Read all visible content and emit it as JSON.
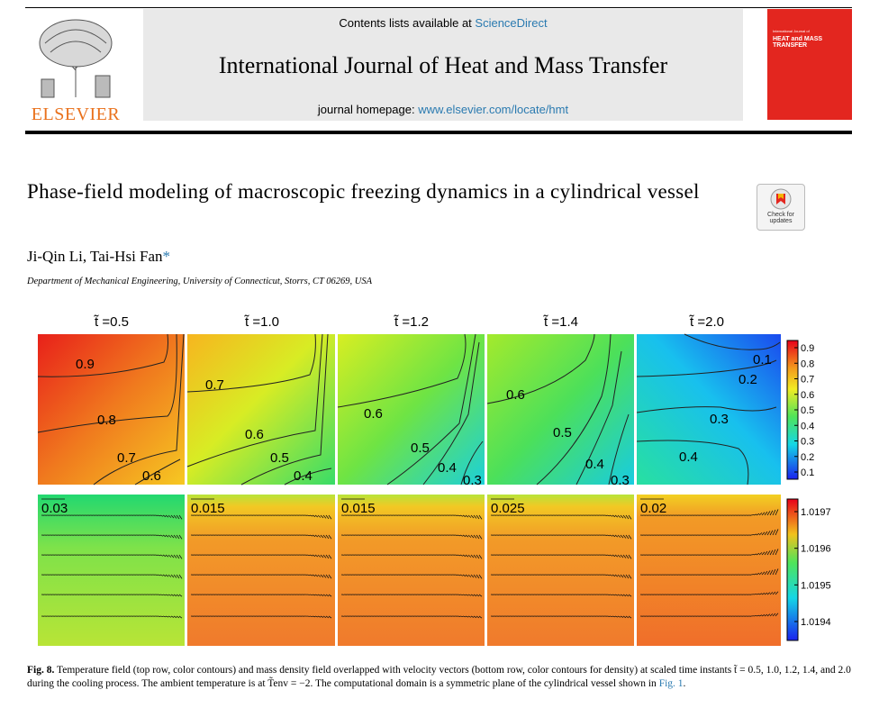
{
  "journal": {
    "contents_prefix": "Contents lists available at ",
    "contents_link": "ScienceDirect",
    "title": "International Journal of Heat and Mass Transfer",
    "homepage_prefix": "journal homepage: ",
    "homepage_link": "www.elsevier.com/locate/hmt",
    "publisher": "ELSEVIER",
    "cover_small": "International Journal of",
    "cover_title": "HEAT and MASS TRANSFER"
  },
  "article": {
    "title": "Phase-field modeling of macroscopic freezing dynamics in a cylindrical vessel",
    "authors": "Ji-Qin Li, Tai-Hsi Fan",
    "author_mark": "*",
    "affiliation": "Department of Mechanical Engineering, University of Connecticut, Storrs, CT 06269, USA",
    "check_updates": "Check for updates"
  },
  "figure": {
    "panel_labels": [
      "t̃ =0.5",
      "t̃ =1.0",
      "t̃ =1.2",
      "t̃ =1.4",
      "t̃ =2.0"
    ],
    "temperature_contour_labels": [
      [
        "0.9",
        "0.8",
        "0.7",
        "0.6"
      ],
      [
        "0.7",
        "0.6",
        "0.5",
        "0.4"
      ],
      [
        "0.6",
        "0.5",
        "0.4",
        "0.3"
      ],
      [
        "0.6",
        "0.5",
        "0.4",
        "0.3"
      ],
      [
        "0.1",
        "0.2",
        "0.3",
        "0.4"
      ]
    ],
    "vector_scales": [
      "0.03",
      "0.015",
      "0.015",
      "0.025",
      "0.02"
    ],
    "temperature_colorbar_ticks": [
      "0.9",
      "0.8",
      "0.7",
      "0.6",
      "0.5",
      "0.4",
      "0.3",
      "0.2",
      "0.1"
    ],
    "density_colorbar_ticks": [
      "1.0197",
      "1.0196",
      "1.0195",
      "1.0194"
    ],
    "colors": {
      "panel_fills": [
        "#ea3a1c",
        "#f2d22a",
        "#b8e81e",
        "#86e44a",
        "#3cc8f2"
      ],
      "density_fill": "#f08a2a"
    }
  },
  "caption": {
    "label": "Fig. 8.",
    "text": "Temperature field (top row, color contours) and mass density field overlapped with velocity vectors (bottom row, color contours for density) at scaled time instants t̃ = 0.5, 1.0, 1.2, 1.4, and 2.0 during the cooling process. The ambient temperature is at T̃env = −2. The computational domain is a symmetric plane of the cylindrical vessel shown in ",
    "link": "Fig. 1",
    "end": "."
  }
}
